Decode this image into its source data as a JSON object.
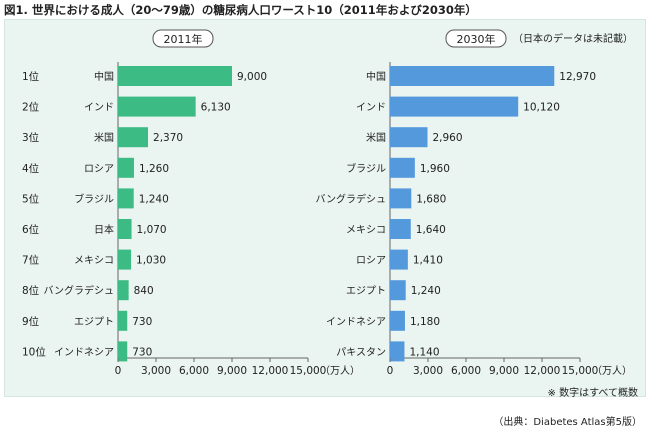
{
  "title": "図1. 世界における成人（20〜79歳）の糖尿病人口ワースト10（2011年および2030年）",
  "source": "（出典：Diabetes Atlas第5版）",
  "note_2030": "（日本のデータは未記載）",
  "axis_note": "※ 数字はすべて概数",
  "colors": {
    "series_2011": "#3dbb85",
    "series_2030": "#5599dd",
    "panel_bg": "#eaf4f1"
  },
  "chart_data": [
    {
      "type": "bar",
      "orientation": "horizontal",
      "title": "2011年",
      "ranks": [
        "1位",
        "2位",
        "3位",
        "4位",
        "5位",
        "6位",
        "7位",
        "8位",
        "9位",
        "10位"
      ],
      "categories": [
        "中国",
        "インド",
        "米国",
        "ロシア",
        "ブラジル",
        "日本",
        "メキシコ",
        "バングラデシュ",
        "エジプト",
        "インドネシア"
      ],
      "values": [
        9000,
        6130,
        2370,
        1260,
        1240,
        1070,
        1030,
        840,
        730,
        730
      ],
      "value_labels": [
        "9,000",
        "6,130",
        "2,370",
        "1,260",
        "1,240",
        "1,070",
        "1,030",
        "840",
        "730",
        "730"
      ],
      "xlim": [
        0,
        15000
      ],
      "ticks": [
        0,
        3000,
        6000,
        9000,
        12000,
        15000
      ],
      "tick_labels": [
        "0",
        "3,000",
        "6,000",
        "9,000",
        "12,000",
        "15,000"
      ],
      "unit": "（万人）"
    },
    {
      "type": "bar",
      "orientation": "horizontal",
      "title": "2030年",
      "categories": [
        "中国",
        "インド",
        "米国",
        "ブラジル",
        "バングラデシュ",
        "メキシコ",
        "ロシア",
        "エジプト",
        "インドネシア",
        "パキスタン"
      ],
      "values": [
        12970,
        10120,
        2960,
        1960,
        1680,
        1640,
        1410,
        1240,
        1180,
        1140
      ],
      "value_labels": [
        "12,970",
        "10,120",
        "2,960",
        "1,960",
        "1,680",
        "1,640",
        "1,410",
        "1,240",
        "1,180",
        "1,140"
      ],
      "xlim": [
        0,
        15000
      ],
      "ticks": [
        0,
        3000,
        6000,
        9000,
        12000,
        15000
      ],
      "tick_labels": [
        "0",
        "3,000",
        "6,000",
        "9,000",
        "12,000",
        "15,000"
      ],
      "unit": "（万人）"
    }
  ]
}
